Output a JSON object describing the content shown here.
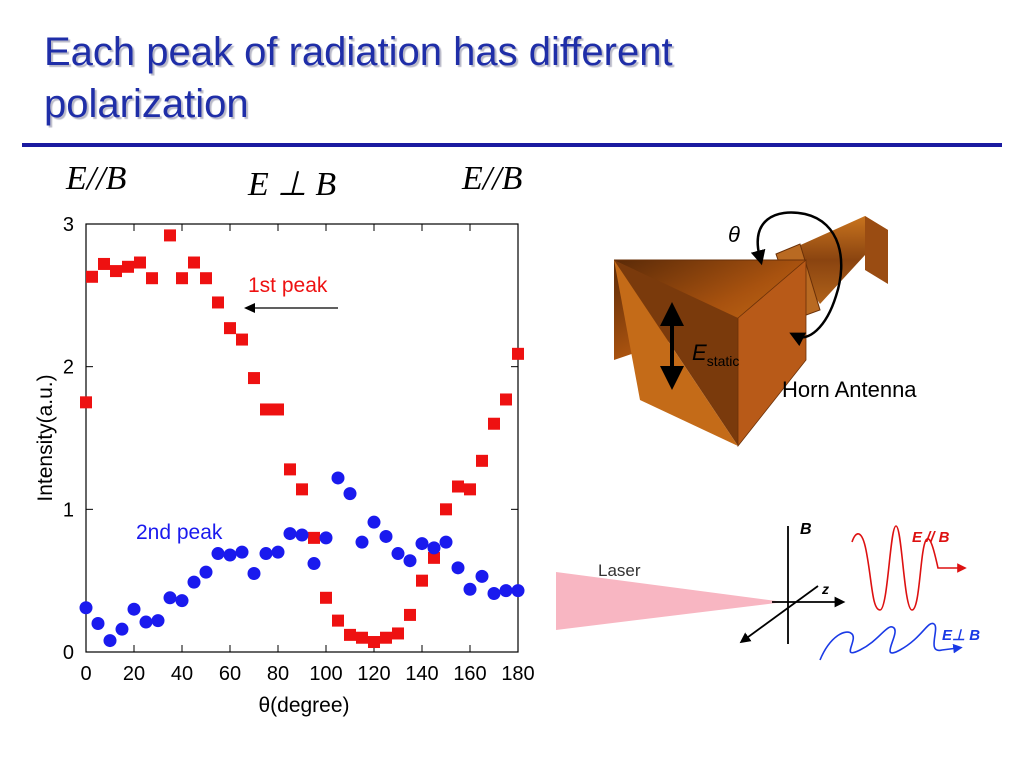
{
  "slide": {
    "title_line1": "Each peak of radiation  has different",
    "title_line2": "polarization",
    "labels": [
      "E//B",
      "E ⊥ B",
      "E//B"
    ]
  },
  "chart_data": {
    "type": "scatter",
    "xlabel": "θ(degree)",
    "ylabel": "Intensity(a.u.)",
    "xlim": [
      0,
      180
    ],
    "ylim": [
      0,
      3
    ],
    "xticks": [
      0,
      20,
      40,
      60,
      80,
      100,
      120,
      140,
      160,
      180
    ],
    "yticks": [
      0,
      1,
      2,
      3
    ],
    "grid": false,
    "series": [
      {
        "name": "1st peak",
        "marker": "square",
        "color": "#ee1111",
        "points": [
          [
            0,
            1.75
          ],
          [
            2.5,
            2.63
          ],
          [
            7.5,
            2.72
          ],
          [
            12.5,
            2.67
          ],
          [
            17.5,
            2.7
          ],
          [
            22.5,
            2.73
          ],
          [
            27.5,
            2.62
          ],
          [
            35,
            2.92
          ],
          [
            40,
            2.62
          ],
          [
            45,
            2.73
          ],
          [
            50,
            2.62
          ],
          [
            55,
            2.45
          ],
          [
            60,
            2.27
          ],
          [
            65,
            2.19
          ],
          [
            70,
            1.92
          ],
          [
            75,
            1.7
          ],
          [
            80,
            1.7
          ],
          [
            85,
            1.28
          ],
          [
            90,
            1.14
          ],
          [
            95,
            0.8
          ],
          [
            100,
            0.38
          ],
          [
            105,
            0.22
          ],
          [
            110,
            0.12
          ],
          [
            115,
            0.1
          ],
          [
            120,
            0.07
          ],
          [
            125,
            0.1
          ],
          [
            130,
            0.13
          ],
          [
            135,
            0.26
          ],
          [
            140,
            0.5
          ],
          [
            145,
            0.66
          ],
          [
            150,
            1.0
          ],
          [
            155,
            1.16
          ],
          [
            160,
            1.14
          ],
          [
            165,
            1.34
          ],
          [
            170,
            1.6
          ],
          [
            175,
            1.77
          ],
          [
            180,
            2.09
          ]
        ]
      },
      {
        "name": "2nd peak",
        "marker": "circle",
        "color": "#1a1aee",
        "points": [
          [
            0,
            0.31
          ],
          [
            5,
            0.2
          ],
          [
            10,
            0.08
          ],
          [
            15,
            0.16
          ],
          [
            20,
            0.3
          ],
          [
            25,
            0.21
          ],
          [
            30,
            0.22
          ],
          [
            35,
            0.38
          ],
          [
            40,
            0.36
          ],
          [
            45,
            0.49
          ],
          [
            50,
            0.56
          ],
          [
            55,
            0.69
          ],
          [
            60,
            0.68
          ],
          [
            65,
            0.7
          ],
          [
            70,
            0.55
          ],
          [
            75,
            0.69
          ],
          [
            80,
            0.7
          ],
          [
            85,
            0.83
          ],
          [
            90,
            0.82
          ],
          [
            95,
            0.62
          ],
          [
            100,
            0.8
          ],
          [
            105,
            1.22
          ],
          [
            110,
            1.11
          ],
          [
            115,
            0.77
          ],
          [
            120,
            0.91
          ],
          [
            125,
            0.81
          ],
          [
            130,
            0.69
          ],
          [
            135,
            0.64
          ],
          [
            140,
            0.76
          ],
          [
            145,
            0.73
          ],
          [
            150,
            0.77
          ],
          [
            155,
            0.59
          ],
          [
            160,
            0.44
          ],
          [
            165,
            0.53
          ],
          [
            170,
            0.41
          ],
          [
            175,
            0.43
          ],
          [
            180,
            0.43
          ]
        ]
      }
    ],
    "annotations": [
      "1st peak",
      "2nd peak"
    ]
  },
  "diagram": {
    "theta_label": "θ",
    "e_static_main": "E",
    "e_static_sub": "static",
    "antenna_label": "Horn Antenna",
    "laser_label": "Laser",
    "b_axis": "B",
    "z_axis": "z",
    "wave1_label": "E //  B",
    "wave2_label": "E⊥ B",
    "horn_color": "#b85a18",
    "wave1_color": "#dd1111",
    "wave2_color": "#1a3ae6",
    "laser_color": "#f8b6c2"
  }
}
